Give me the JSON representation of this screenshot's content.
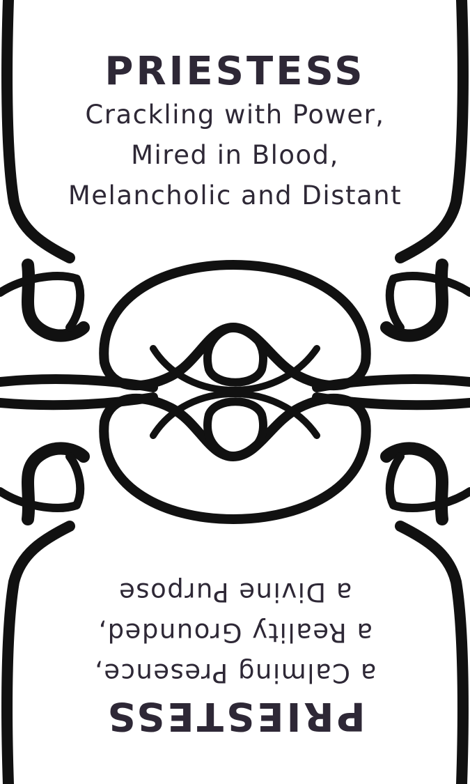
{
  "card": {
    "colors": {
      "ink": "#111111",
      "text": "#2e2836",
      "background": "#ffffff"
    },
    "top": {
      "title": "PRIESTESS",
      "lines": [
        "Crackling with Power,",
        "Mired in Blood,",
        "Melancholic and Distant"
      ]
    },
    "bottom": {
      "title": "PRIESTESS",
      "lines": [
        "a Calming Presence,",
        "a Reality Grounded,",
        "a Divine Purpose"
      ]
    }
  }
}
